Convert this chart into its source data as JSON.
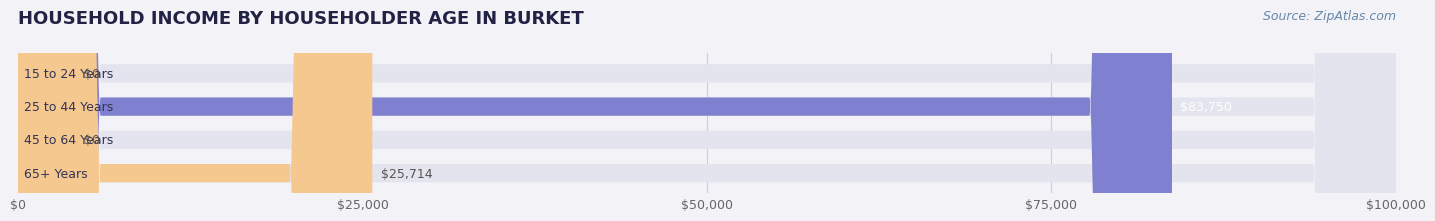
{
  "title": "HOUSEHOLD INCOME BY HOUSEHOLDER AGE IN BURKET",
  "source": "Source: ZipAtlas.com",
  "categories": [
    "15 to 24 Years",
    "25 to 44 Years",
    "45 to 64 Years",
    "65+ Years"
  ],
  "values": [
    0,
    83750,
    0,
    25714
  ],
  "bar_colors": [
    "#6dcdc8",
    "#8080d0",
    "#f090b0",
    "#f5c890"
  ],
  "label_colors": [
    "#555555",
    "#ffffff",
    "#555555",
    "#555555"
  ],
  "background_color": "#f2f2f7",
  "bar_bg_color": "#e4e4ee",
  "xlim": [
    0,
    100000
  ],
  "xticks": [
    0,
    25000,
    50000,
    75000,
    100000
  ],
  "xtick_labels": [
    "$0",
    "$25,000",
    "$50,000",
    "$75,000",
    "$100,000"
  ],
  "value_labels": [
    "$0",
    "$83,750",
    "$0",
    "$25,714"
  ],
  "bar_height": 0.55,
  "title_fontsize": 13,
  "tick_fontsize": 9,
  "label_fontsize": 9,
  "source_fontsize": 9,
  "category_fontsize": 9
}
